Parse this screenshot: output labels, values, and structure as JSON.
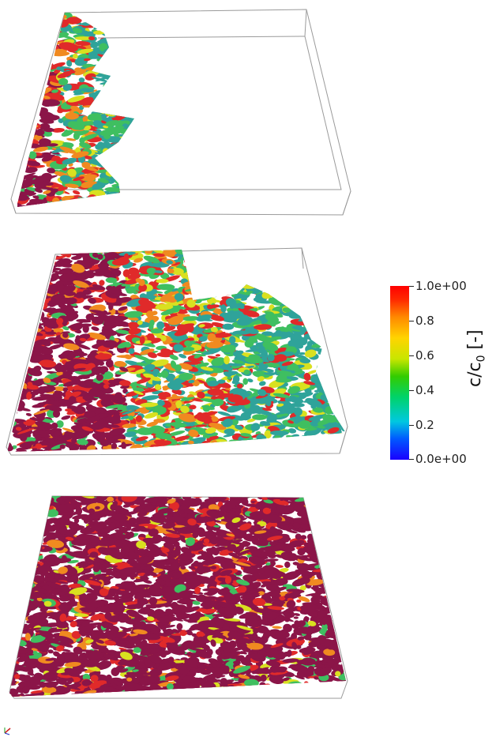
{
  "colorbar": {
    "title_main": "c/c",
    "title_sub": "0",
    "title_unit": "[-]",
    "ticks": [
      {
        "value": 1.0,
        "label": "1.0e+00"
      },
      {
        "value": 0.8,
        "label": "0.8"
      },
      {
        "value": 0.6,
        "label": "0.6"
      },
      {
        "value": 0.4,
        "label": "0.4"
      },
      {
        "value": 0.2,
        "label": "0.2"
      },
      {
        "value": 0.0,
        "label": "0.0e+00"
      }
    ],
    "colors": [
      "#1a00ff",
      "#00c8e0",
      "#33cc00",
      "#ffd400",
      "#ff0000"
    ]
  },
  "panels": [
    {
      "name": "panel-early-time",
      "front_fraction": 0.25
    },
    {
      "name": "panel-mid-time",
      "front_fraction": 0.85
    },
    {
      "name": "panel-late-time",
      "front_fraction": 1.0
    }
  ],
  "palette": {
    "saturated": "#8b1548",
    "red": "#e02a2a",
    "orange": "#f08a20",
    "yellow": "#d9e020",
    "green": "#3fbf60",
    "teal": "#2fa39a",
    "box_edge": "#9a9a9a"
  }
}
